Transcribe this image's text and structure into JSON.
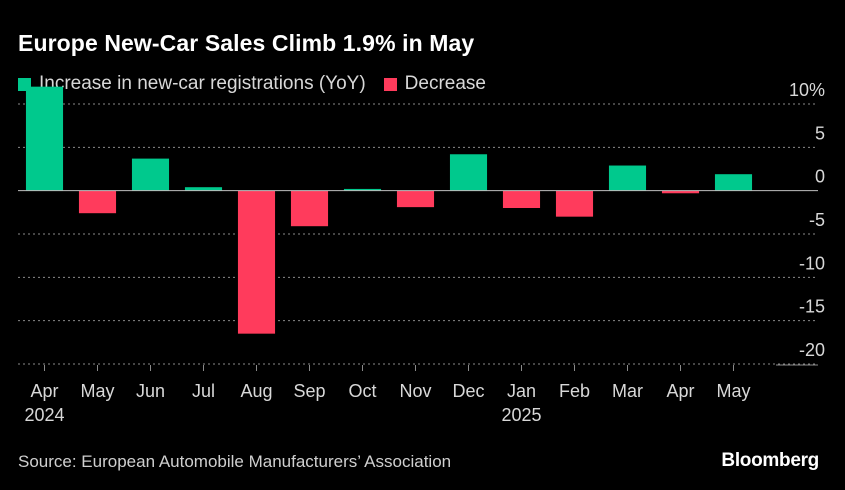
{
  "title": "Europe New-Car Sales Climb 1.9% in May",
  "legend": {
    "increase_label": "Increase in new-car registrations (YoY)",
    "decrease_label": "Decrease"
  },
  "colors": {
    "increase": "#00c98d",
    "decrease": "#ff3b5c",
    "grid": "#8a8a8a",
    "text": "#d8d8d8"
  },
  "source": "Source: European Automobile Manufacturers’ Association",
  "brand": "Bloomberg",
  "chart_data": {
    "type": "bar",
    "title": "Europe New-Car Sales Climb 1.9% in May",
    "categories": [
      "Apr",
      "May",
      "Jun",
      "Jul",
      "Aug",
      "Sep",
      "Oct",
      "Nov",
      "Dec",
      "Jan",
      "Feb",
      "Mar",
      "Apr",
      "May"
    ],
    "year_labels": [
      "2024",
      "",
      "",
      "",
      "",
      "",
      "",
      "",
      "",
      "2025",
      "",
      "",
      "",
      ""
    ],
    "values": [
      12.0,
      -2.6,
      3.7,
      0.4,
      -16.5,
      -4.1,
      0.2,
      -1.9,
      4.2,
      -2.0,
      -3.0,
      2.9,
      -0.3,
      1.9
    ],
    "ylim": [
      -20,
      10
    ],
    "yticks": [
      10,
      5,
      0,
      -5,
      -10,
      -15,
      -20
    ],
    "ytick_labels": [
      "10%",
      "5",
      "0",
      "-5",
      "-10",
      "-15",
      "-20"
    ],
    "xlabel": "",
    "ylabel": "",
    "grid": true
  }
}
